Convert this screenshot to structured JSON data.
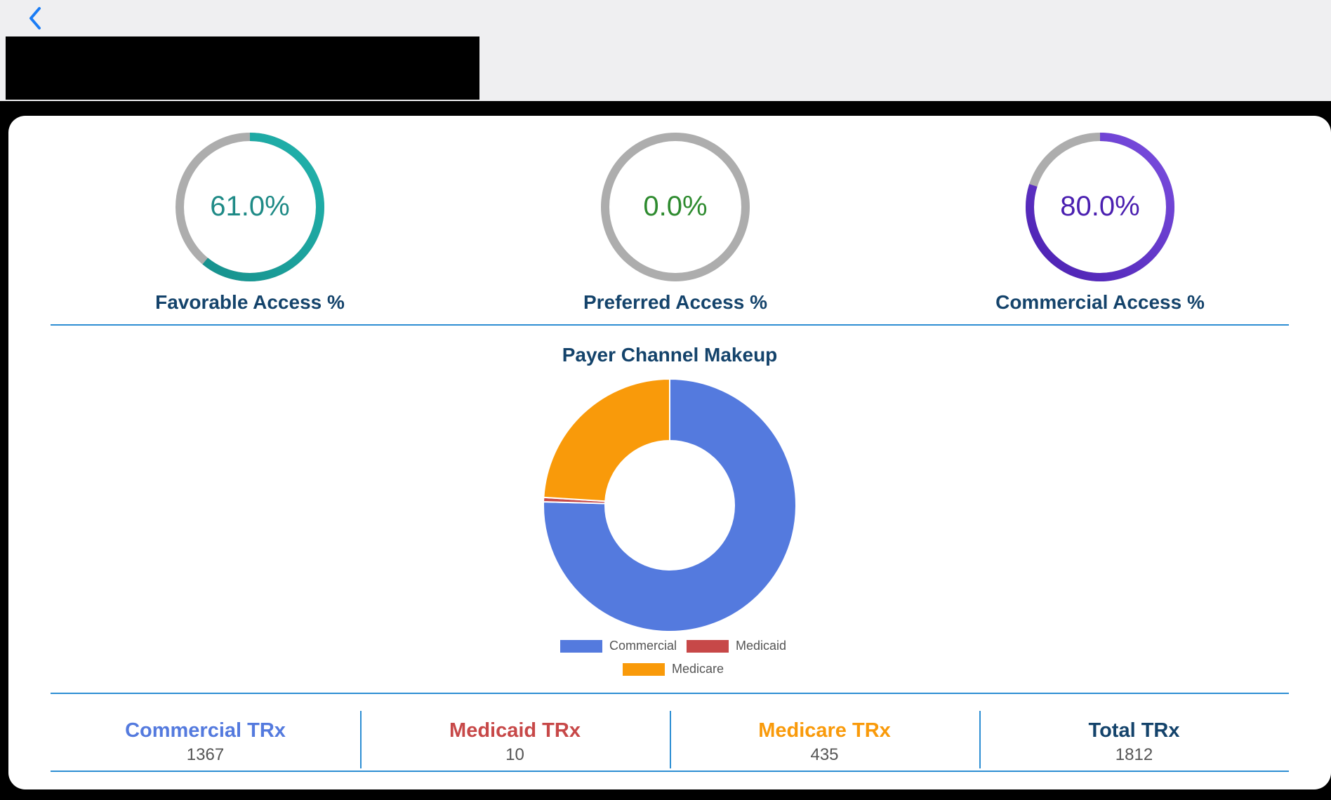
{
  "header": {
    "back_icon": "chevron-left-icon"
  },
  "gauges": [
    {
      "label": "Favorable Access %",
      "value_text": "61.0%",
      "value": 61.0,
      "color": "#21b3ad",
      "color_dark": "#17918d",
      "text_color": "#1e8a86"
    },
    {
      "label": "Preferred Access %",
      "value_text": "0.0%",
      "value": 0.0,
      "color": "#2f9a3a",
      "color_dark": "#2f9a3a",
      "text_color": "#2e8b2f"
    },
    {
      "label": "Commercial Access %",
      "value_text": "80.0%",
      "value": 80.0,
      "color": "#7b4fe0",
      "color_dark": "#4a1fb0",
      "text_color": "#4a1fb0"
    }
  ],
  "chart_data": {
    "type": "pie",
    "title": "Payer Channel Makeup",
    "categories": [
      "Commercial",
      "Medicaid",
      "Medicare"
    ],
    "values": [
      1367,
      10,
      435
    ],
    "colors": [
      "#547ade",
      "#c74848",
      "#f99a0a"
    ],
    "legend": "bottom"
  },
  "stats": [
    {
      "label": "Commercial TRx",
      "value": "1367",
      "color": "#547ade"
    },
    {
      "label": "Medicaid TRx",
      "value": "10",
      "color": "#c74848"
    },
    {
      "label": "Medicare TRx",
      "value": "435",
      "color": "#f99a0a"
    },
    {
      "label": "Total TRx",
      "value": "1812",
      "color": "#14436b"
    }
  ]
}
